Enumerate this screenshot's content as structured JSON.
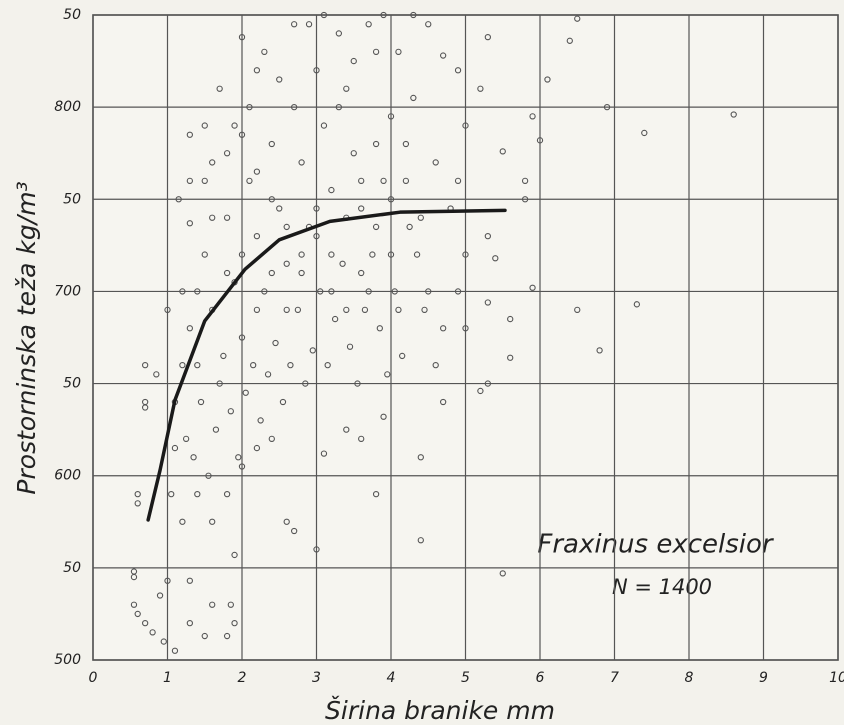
{
  "chart_data": {
    "type": "scatter",
    "xlabel": "Širina branike mm",
    "ylabel": "Prostorninska teža kg/m³",
    "annotations": [
      "Fraxinus excelsior",
      "N = 1400"
    ],
    "xlim": [
      0,
      10
    ],
    "xticks": [
      0,
      1,
      2,
      3,
      4,
      5,
      6,
      7,
      8,
      9,
      10
    ],
    "ylim": [
      500,
      850
    ],
    "yticks": [
      500,
      {
        "value": 550,
        "label": "50"
      },
      600,
      {
        "value": 650,
        "label": "50"
      },
      700,
      {
        "value": 750,
        "label": "50"
      },
      800,
      {
        "value": 850,
        "label": "50"
      }
    ],
    "grid": true,
    "series": [
      {
        "color": "#555555",
        "type": "scatter",
        "x": [
          0.6,
          0.6,
          0.55,
          0.6,
          0.7,
          0.55,
          0.55,
          0.8,
          0.9,
          0.95,
          1.0,
          1.1,
          1.3,
          1.5,
          1.8,
          1.85,
          1.6,
          1.3,
          0.7,
          0.7,
          0.7,
          0.85,
          2.6,
          2.7,
          3.0,
          4.4,
          3.8,
          4.4,
          5.5,
          5.3,
          5.2,
          5.6,
          6.8,
          6.5,
          7.3,
          5.9,
          5.8,
          5.8,
          6.4,
          6.1,
          6.9,
          7.4,
          8.6,
          6.0,
          5.9,
          6.5,
          5.3,
          5.2,
          5.5,
          5.3,
          5.4,
          5.3,
          5.6,
          2.2,
          2.0,
          1.3,
          1.5,
          1.3,
          1.9,
          1.9,
          1.1,
          1.2,
          1.3,
          1.4,
          1.5,
          1.6,
          1.7,
          1.8,
          1.9,
          2.0,
          2.1,
          2.2,
          2.3,
          2.4,
          2.5,
          2.6,
          2.7,
          2.8,
          2.9,
          3.0,
          3.1,
          3.2,
          3.3,
          3.4,
          3.5,
          3.6,
          3.7,
          3.8,
          3.9,
          4.0,
          4.1,
          4.2,
          4.3,
          4.4,
          4.5,
          4.6,
          4.7,
          4.8,
          1.25,
          1.35,
          1.45,
          1.55,
          1.65,
          1.75,
          1.85,
          1.95,
          2.05,
          2.15,
          2.25,
          2.35,
          2.45,
          2.55,
          2.65,
          2.75,
          2.85,
          2.95,
          3.05,
          3.15,
          3.25,
          3.35,
          3.45,
          3.55,
          3.65,
          3.75,
          3.85,
          3.95,
          4.05,
          4.15,
          4.25,
          4.35,
          4.45,
          1.5,
          1.7,
          1.9,
          2.1,
          2.3,
          2.5,
          2.7,
          2.9,
          3.1,
          3.3,
          3.5,
          3.7,
          3.9,
          4.1,
          4.3,
          4.5,
          4.7,
          4.9,
          5.0,
          4.9,
          5.0,
          4.9,
          5.0,
          4.6,
          4.7,
          1.15,
          1.3,
          1.6,
          1.8,
          2.0,
          2.2,
          2.4,
          2.6,
          2.8,
          3.0,
          3.2,
          3.4,
          3.6,
          3.8,
          4.0,
          4.2,
          1.4,
          1.6,
          1.8,
          2.0,
          2.2,
          2.4,
          2.6,
          2.8,
          3.0,
          3.2,
          3.4,
          3.6,
          3.8,
          4.0,
          1.2,
          1.0,
          1.1,
          1.05,
          1.2,
          1.4,
          1.6,
          1.8,
          2.0,
          2.2,
          2.4,
          3.1,
          3.4,
          3.6,
          3.9
        ],
        "values": [
          590,
          585,
          530,
          525,
          520,
          548,
          545,
          515,
          535,
          510,
          543,
          505,
          520,
          513,
          513,
          530,
          530,
          543,
          640,
          637,
          660,
          655,
          575,
          570,
          560,
          565,
          590,
          610,
          547,
          650,
          646,
          664,
          668,
          690,
          693,
          702,
          750,
          760,
          836,
          815,
          800,
          786,
          796,
          782,
          795,
          848,
          838,
          810,
          776,
          730,
          718,
          694,
          685,
          820,
          838,
          785,
          760,
          737,
          557,
          520,
          640,
          700,
          680,
          660,
          720,
          690,
          650,
          740,
          705,
          675,
          760,
          730,
          700,
          780,
          745,
          715,
          800,
          770,
          735,
          820,
          790,
          755,
          840,
          810,
          775,
          745,
          700,
          830,
          760,
          720,
          690,
          780,
          805,
          740,
          700,
          770,
          680,
          745,
          620,
          610,
          640,
          600,
          625,
          665,
          635,
          610,
          645,
          660,
          630,
          655,
          672,
          640,
          660,
          690,
          650,
          668,
          700,
          660,
          685,
          715,
          670,
          650,
          690,
          720,
          680,
          655,
          700,
          665,
          735,
          720,
          690,
          790,
          810,
          790,
          800,
          830,
          815,
          845,
          845,
          850,
          800,
          825,
          845,
          850,
          830,
          850,
          845,
          828,
          820,
          790,
          760,
          720,
          700,
          680,
          660,
          640,
          750,
          760,
          770,
          775,
          785,
          765,
          750,
          735,
          710,
          730,
          720,
          740,
          760,
          780,
          795,
          760,
          700,
          740,
          710,
          720,
          690,
          710,
          690,
          720,
          745,
          700,
          690,
          710,
          735,
          750,
          660,
          690,
          615,
          590,
          575,
          590,
          575,
          590,
          605,
          615,
          620,
          612,
          625,
          620,
          632
        ]
      },
      {
        "color": "#1a1a1a",
        "type": "line",
        "x": [
          0.74,
          0.9,
          1.1,
          1.5,
          2.04,
          2.5,
          3.18,
          4.12,
          5.53
        ],
        "values": [
          576,
          603,
          641,
          684,
          712,
          728,
          738,
          743,
          744
        ]
      }
    ]
  }
}
